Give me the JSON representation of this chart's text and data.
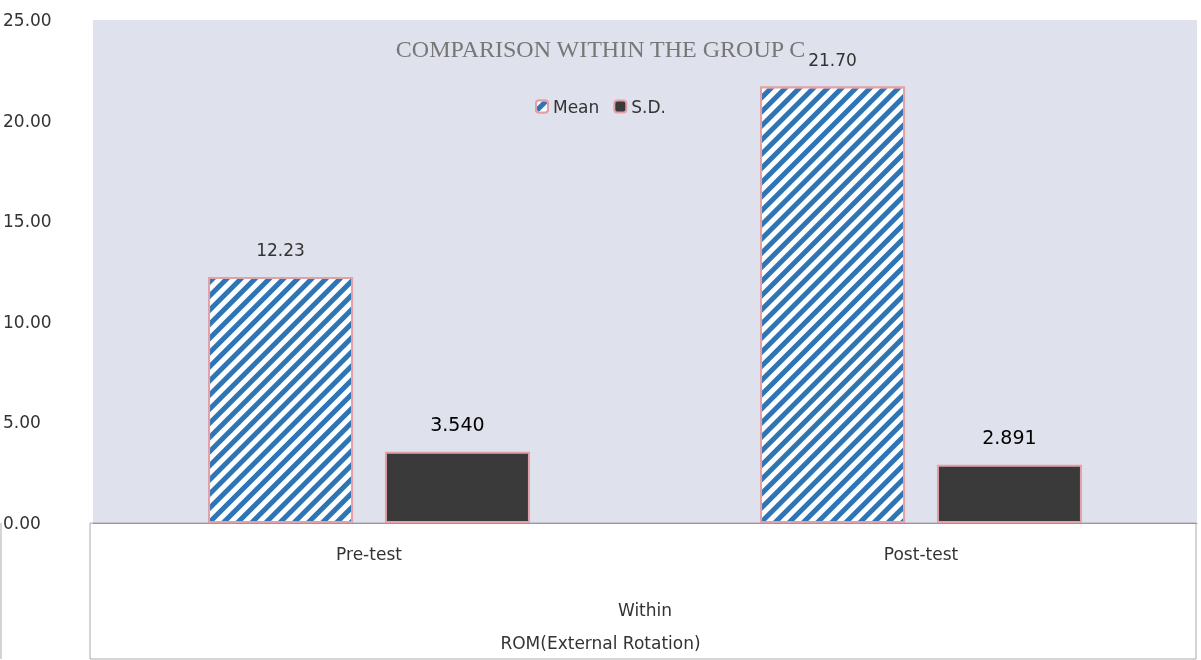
{
  "chart_data": {
    "type": "bar",
    "title": "COMPARISON WITHIN THE GROUP C",
    "categories": [
      "Pre-test",
      "Post-test"
    ],
    "xlabel": "Within",
    "annotations": [
      "ROM(External Rotation)"
    ],
    "series": [
      {
        "name": "Mean",
        "color": "#2e75b6",
        "values": [
          12.23,
          21.7
        ],
        "value_labels": [
          "12.23",
          "21.70"
        ]
      },
      {
        "name": "S.D.",
        "color": "#3a3a3a",
        "values": [
          3.54,
          2.891
        ],
        "value_labels": [
          "3.540",
          "2.891"
        ]
      }
    ],
    "ylim": [
      0,
      25
    ],
    "yticks": [
      {
        "value": 0,
        "label": "0.00"
      },
      {
        "value": 5,
        "label": "5.00"
      },
      {
        "value": 10,
        "label": "10.00"
      },
      {
        "value": 15,
        "label": "15.00"
      },
      {
        "value": 20,
        "label": "20.00"
      },
      {
        "value": 25,
        "label": "25.00"
      }
    ],
    "grid": false,
    "legend": "top"
  }
}
